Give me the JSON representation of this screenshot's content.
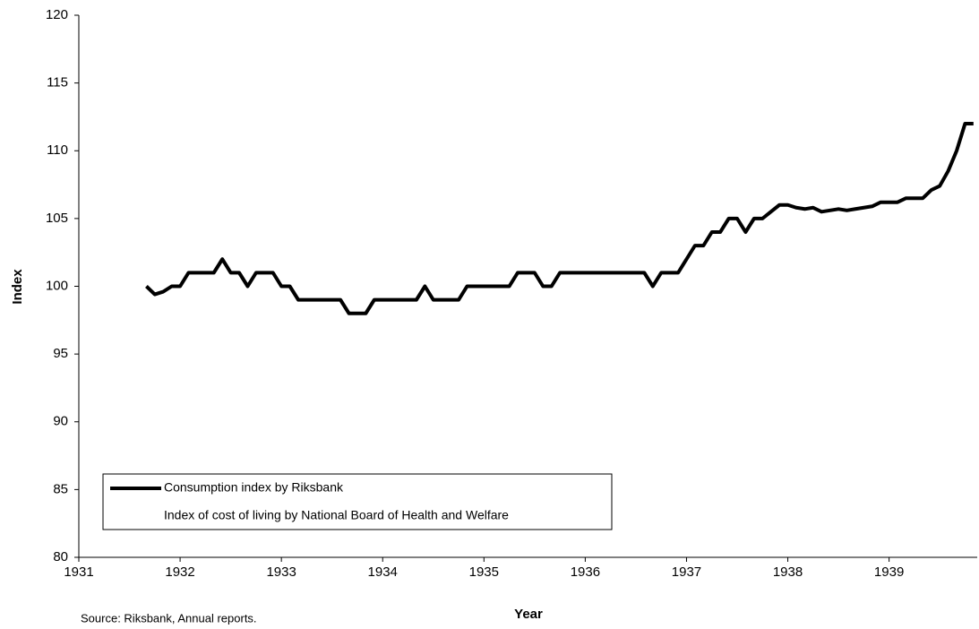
{
  "chart_data": {
    "type": "line",
    "x_label": "Year",
    "y_label": "Index",
    "note": "Source: Riksbank, Annual reports.",
    "x": [
      1931.667,
      1931.75,
      1931.833,
      1931.917,
      1932,
      1932.083,
      1932.167,
      1932.25,
      1932.333,
      1932.417,
      1932.5,
      1932.583,
      1932.667,
      1932.75,
      1932.833,
      1932.917,
      1933,
      1933.083,
      1933.167,
      1933.25,
      1933.333,
      1933.417,
      1933.5,
      1933.583,
      1933.667,
      1933.75,
      1933.833,
      1933.917,
      1934,
      1934.083,
      1934.167,
      1934.25,
      1934.333,
      1934.417,
      1934.5,
      1934.583,
      1934.667,
      1934.75,
      1934.833,
      1934.917,
      1935,
      1935.083,
      1935.167,
      1935.25,
      1935.333,
      1935.417,
      1935.5,
      1935.583,
      1935.667,
      1935.75,
      1935.833,
      1935.917,
      1936,
      1936.083,
      1936.167,
      1936.25,
      1936.333,
      1936.417,
      1936.5,
      1936.583,
      1936.667,
      1936.75,
      1936.833,
      1936.917,
      1937,
      1937.083,
      1937.167,
      1937.25,
      1937.333,
      1937.417,
      1937.5,
      1937.583,
      1937.667,
      1937.75,
      1937.833,
      1937.917,
      1938,
      1938.083,
      1938.167,
      1938.25,
      1938.333,
      1938.417,
      1938.5,
      1938.583,
      1938.667,
      1938.75,
      1938.833,
      1938.917,
      1939,
      1939.083,
      1939.167,
      1939.25,
      1939.333,
      1939.417,
      1939.5,
      1939.583,
      1939.667,
      1939.75,
      1939.833
    ],
    "series": [
      {
        "name": "Consumption index by Riksbank",
        "color": "#000000",
        "values": [
          100,
          99.4,
          99.6,
          100,
          100,
          101,
          101,
          101,
          101,
          102,
          101,
          101,
          100,
          101,
          101,
          101,
          100,
          100,
          99,
          99,
          99,
          99,
          99,
          99,
          98,
          98,
          98,
          99,
          99,
          99,
          99,
          99,
          99,
          100,
          99,
          99,
          99,
          99,
          100,
          100,
          100,
          100,
          100,
          100,
          101,
          101,
          101,
          100,
          100,
          101,
          101,
          101,
          101,
          101,
          101,
          101,
          101,
          101,
          101,
          101,
          100,
          101,
          101,
          101,
          102,
          103,
          103,
          104,
          104,
          105,
          105,
          104,
          105,
          105,
          105.5,
          106,
          106,
          105.8,
          105.7,
          105.8,
          105.5,
          105.6,
          105.7,
          105.6,
          105.7,
          105.8,
          105.9,
          106.2,
          106.2,
          106.2,
          106.5,
          106.5,
          106.5,
          107.1,
          107.4,
          108.5,
          110,
          112,
          112
        ]
      },
      {
        "name": "Index of cost of living by National Board of Health and Welfare",
        "color": "#ffffff"
      }
    ],
    "xlim": [
      1931,
      1939.87
    ],
    "xticks": [
      1931,
      1932,
      1933,
      1934,
      1935,
      1936,
      1937,
      1938,
      1939
    ],
    "ylim": [
      80,
      120
    ],
    "yticks": [
      80,
      85,
      90,
      95,
      100,
      105,
      110,
      115,
      120
    ],
    "grid": false,
    "legend": "lower left"
  }
}
